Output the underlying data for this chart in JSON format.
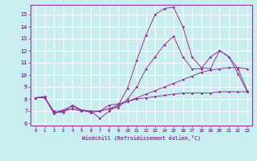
{
  "xlabel": "Windchill (Refroidissement éolien,°C)",
  "line_color": "#993399",
  "background_color": "#c8eef0",
  "grid_color": "#ffffff",
  "xlim": [
    -0.5,
    23.5
  ],
  "ylim": [
    5.8,
    15.8
  ],
  "yticks": [
    6,
    7,
    8,
    9,
    10,
    11,
    12,
    13,
    14,
    15
  ],
  "xticks": [
    0,
    1,
    2,
    3,
    4,
    5,
    6,
    7,
    8,
    9,
    10,
    11,
    12,
    13,
    14,
    15,
    16,
    17,
    18,
    19,
    20,
    21,
    22,
    23
  ],
  "series": [
    {
      "x": [
        0,
        1,
        2,
        3,
        4,
        5,
        6,
        7,
        8,
        9,
        10,
        11,
        12,
        13,
        14,
        15,
        16,
        17,
        18,
        19,
        20,
        21,
        22,
        23
      ],
      "y": [
        8.1,
        8.2,
        6.8,
        7.0,
        7.2,
        7.1,
        7.0,
        6.4,
        7.0,
        7.5,
        8.9,
        11.2,
        13.3,
        15.0,
        15.5,
        15.6,
        14.0,
        11.5,
        10.6,
        10.5,
        12.0,
        11.5,
        10.1,
        8.6
      ]
    },
    {
      "x": [
        0,
        1,
        2,
        3,
        4,
        5,
        6,
        7,
        8,
        9,
        10,
        11,
        12,
        13,
        14,
        15,
        16,
        17,
        18,
        19,
        20,
        21,
        22,
        23
      ],
      "y": [
        8.1,
        8.1,
        6.9,
        6.9,
        7.5,
        7.1,
        6.9,
        7.0,
        7.2,
        7.3,
        8.0,
        9.0,
        10.5,
        11.5,
        12.5,
        13.2,
        11.5,
        10.5,
        10.5,
        11.5,
        12.0,
        11.5,
        10.5,
        8.7
      ]
    },
    {
      "x": [
        0,
        1,
        2,
        3,
        4,
        5,
        6,
        7,
        8,
        9,
        10,
        11,
        12,
        13,
        14,
        15,
        16,
        17,
        18,
        19,
        20,
        21,
        22,
        23
      ],
      "y": [
        8.1,
        8.1,
        7.0,
        7.0,
        7.2,
        7.0,
        7.0,
        7.0,
        7.5,
        7.6,
        7.8,
        8.0,
        8.1,
        8.2,
        8.3,
        8.4,
        8.5,
        8.5,
        8.5,
        8.5,
        8.6,
        8.6,
        8.6,
        8.6
      ]
    },
    {
      "x": [
        0,
        1,
        2,
        3,
        4,
        5,
        6,
        7,
        8,
        9,
        10,
        11,
        12,
        13,
        14,
        15,
        16,
        17,
        18,
        19,
        20,
        21,
        22,
        23
      ],
      "y": [
        8.1,
        8.2,
        6.8,
        7.1,
        7.4,
        7.1,
        6.9,
        7.0,
        7.2,
        7.5,
        7.8,
        8.1,
        8.4,
        8.7,
        9.0,
        9.3,
        9.6,
        9.9,
        10.2,
        10.4,
        10.5,
        10.6,
        10.6,
        10.5
      ]
    }
  ]
}
